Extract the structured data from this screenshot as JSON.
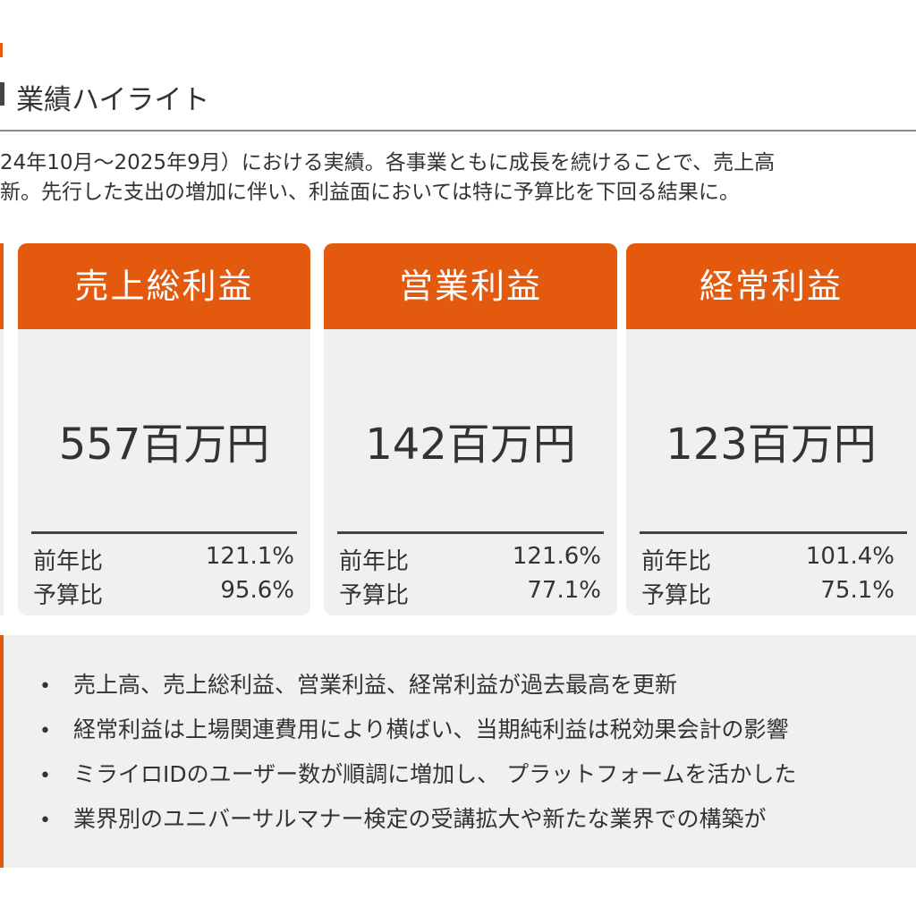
{
  "header": {
    "title": "業績ハイライト"
  },
  "intro": {
    "line1": "24年10月～2025年9月）における実績。各事業ともに成長を続けることで、売上高",
    "line2": "新。先行した支出の増加に伴い、利益面においては特に予算比を下回る結果に。"
  },
  "cards": [
    {
      "title": "売上総利益",
      "value": "557百万円",
      "yoy_label": "前年比",
      "yoy_value": "121.1%",
      "budget_label": "予算比",
      "budget_value": "95.6%"
    },
    {
      "title": "営業利益",
      "value": "142百万円",
      "yoy_label": "前年比",
      "yoy_value": "121.6%",
      "budget_label": "予算比",
      "budget_value": "77.1%"
    },
    {
      "title": "経常利益",
      "value": "123百万円",
      "yoy_label": "前年比",
      "yoy_value": "101.4%",
      "budget_label": "予算比",
      "budget_value": "75.1%"
    }
  ],
  "notes": [
    "売上高、売上総利益、営業利益、経常利益が過去最高を更新",
    "経常利益は上場関連費用により横ばい、当期純利益は税効果会計の影響",
    "ミライロIDのユーザー数が順調に増加し、 プラットフォームを活かした",
    "業界別のユニバーサルマナー検定の受講拡大や新たな業界での構築が"
  ],
  "colors": {
    "accent": "#e35a0f",
    "card_bg": "#f0f0f0",
    "text": "#333333"
  }
}
